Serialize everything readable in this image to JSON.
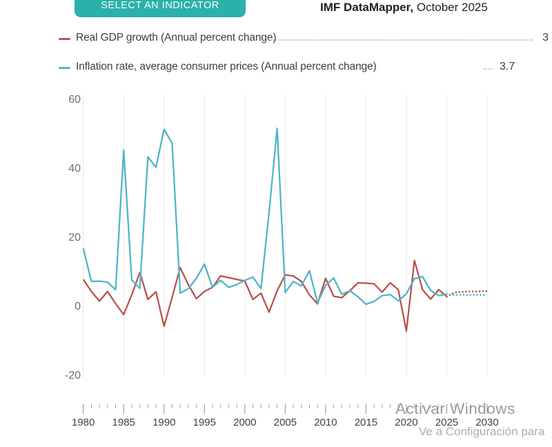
{
  "header": {
    "select_button": "SELECT AN INDICATOR",
    "source_title": "IMF DataMapper,",
    "source_date": " October 2025"
  },
  "legend": [
    {
      "label": "Real GDP growth (Annual percent change)",
      "value": "3",
      "color": "#b9524e"
    },
    {
      "label": "Inflation rate, average consumer prices (Annual percent change)",
      "value": "3.7",
      "color": "#4fb5c5"
    }
  ],
  "watermark": {
    "line1": "Activar Windows",
    "line2": "Ve a Configuración para"
  },
  "chart_data": {
    "type": "line",
    "title": "",
    "xlabel": "",
    "ylabel": "",
    "x_start": 1980,
    "x_end": 2030,
    "projection_from_year": 2025,
    "ylim": [
      -20,
      60
    ],
    "yticks": [
      60,
      40,
      20,
      0,
      -20
    ],
    "xticks": [
      1980,
      1985,
      1990,
      1995,
      2000,
      2005,
      2010,
      2015,
      2020,
      2025,
      2030
    ],
    "grid": "vertical-only",
    "legend_position": "top",
    "series": [
      {
        "name": "Real GDP growth (Annual percent change)",
        "color": "#b9524e",
        "values": [
          8.0,
          4.5,
          1.7,
          4.5,
          1.0,
          -2.2,
          3.5,
          10.0,
          2.2,
          4.4,
          -5.6,
          2.8,
          11.4,
          6.5,
          2.4,
          4.5,
          5.7,
          9.0,
          8.5,
          8.0,
          7.5,
          2.2,
          4.0,
          -1.5,
          4.7,
          9.3,
          9.0,
          7.4,
          3.5,
          0.9,
          8.3,
          3.1,
          2.7,
          4.7,
          7.0,
          6.9,
          6.7,
          4.3,
          7.0,
          5.0,
          -7.0,
          13.5,
          5.0,
          2.3,
          5.0,
          3.0,
          4.2,
          4.4,
          4.5,
          4.5,
          4.6
        ]
      },
      {
        "name": "Inflation rate, average consumer prices (Annual percent change)",
        "color": "#4fb5c5",
        "values": [
          17.0,
          7.4,
          7.5,
          7.2,
          5.0,
          45.5,
          7.8,
          5.4,
          43.5,
          40.5,
          51.5,
          47.5,
          4.0,
          5.3,
          8.3,
          12.4,
          5.7,
          7.7,
          5.7,
          6.5,
          7.7,
          8.7,
          5.3,
          27.4,
          51.8,
          4.2,
          7.4,
          6.1,
          10.5,
          1.2,
          6.3,
          8.4,
          3.7,
          4.7,
          3.0,
          0.8,
          1.6,
          3.3,
          3.6,
          1.8,
          3.8,
          8.2,
          8.8,
          4.8,
          3.3,
          3.7,
          3.5,
          3.5,
          3.5,
          3.5,
          3.5
        ]
      }
    ]
  }
}
